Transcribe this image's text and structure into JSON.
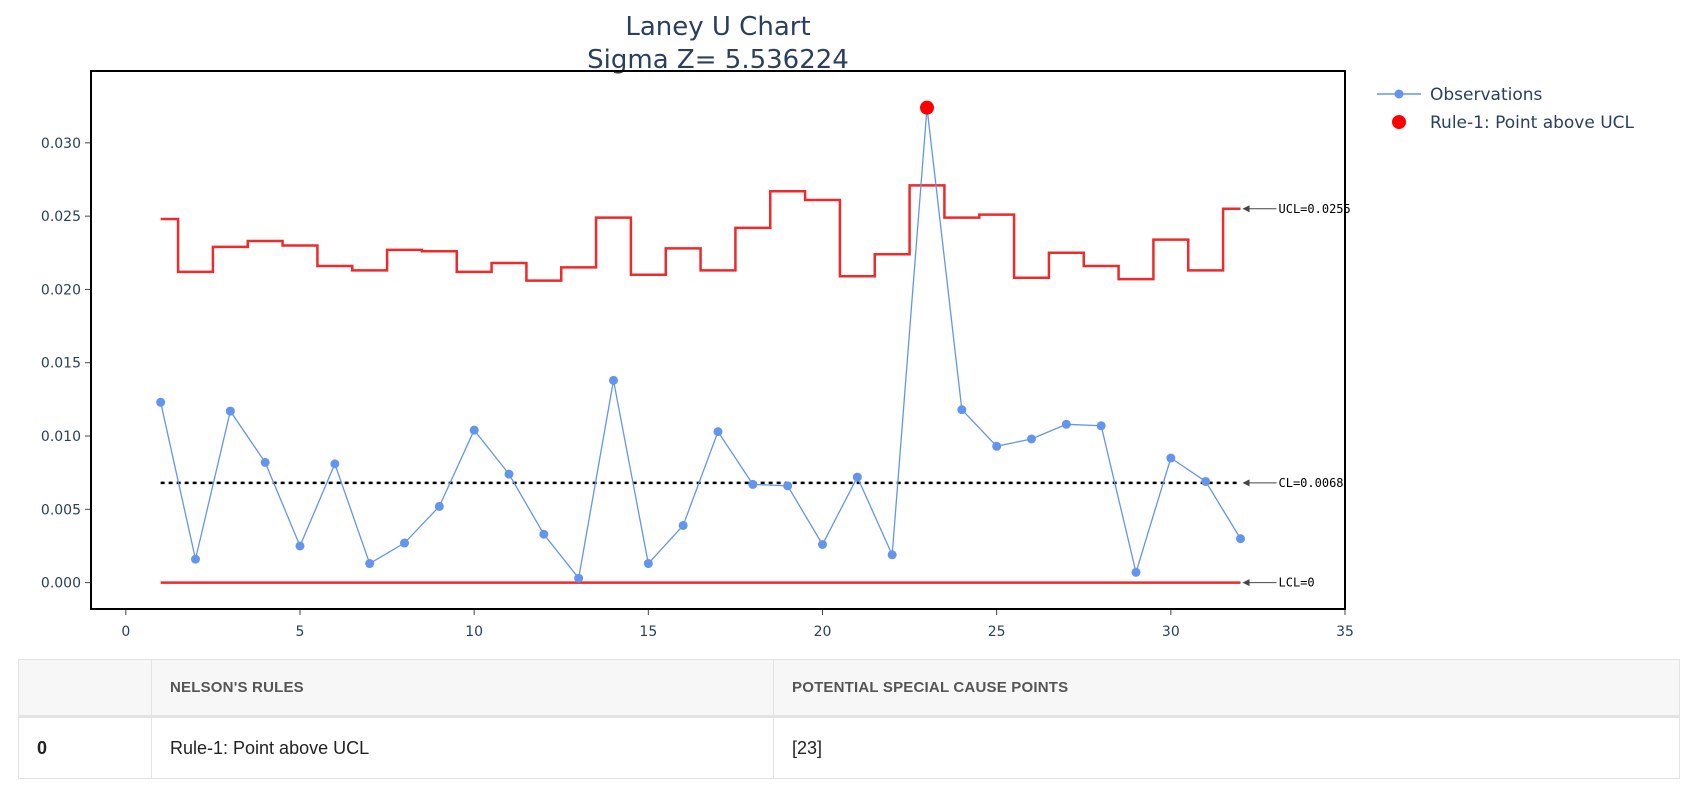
{
  "chart_data": {
    "type": "line",
    "title": "Laney U Chart",
    "subtitle": "Sigma Z= 5.536224",
    "xlim": [
      -1,
      35
    ],
    "ylim": [
      -0.0018,
      0.0349
    ],
    "x_ticks": [
      0,
      5,
      10,
      15,
      20,
      25,
      30,
      35
    ],
    "y_ticks": [
      0.0,
      0.005,
      0.01,
      0.015,
      0.02,
      0.025,
      0.03
    ],
    "y_tick_labels": [
      "0.000",
      "0.005",
      "0.010",
      "0.015",
      "0.020",
      "0.025",
      "0.030"
    ],
    "series": [
      {
        "name": "Observations",
        "color": "#6495ed",
        "mode": "lines+markers",
        "x": [
          1,
          2,
          3,
          4,
          5,
          6,
          7,
          8,
          9,
          10,
          11,
          12,
          13,
          14,
          15,
          16,
          17,
          18,
          19,
          20,
          21,
          22,
          23,
          24,
          25,
          26,
          27,
          28,
          29,
          30,
          31,
          32
        ],
        "values": [
          0.0123,
          0.0016,
          0.0117,
          0.0082,
          0.0025,
          0.0081,
          0.0013,
          0.0027,
          0.0052,
          0.0104,
          0.0074,
          0.0033,
          0.0003,
          0.0138,
          0.0013,
          0.0039,
          0.0103,
          0.0067,
          0.0066,
          0.0026,
          0.0072,
          0.0019,
          0.0324,
          0.0118,
          0.0093,
          0.0098,
          0.0108,
          0.0107,
          0.0007,
          0.0085,
          0.0069,
          0.003
        ]
      },
      {
        "name": "Rule-1: Point above UCL",
        "color": "#ff0000",
        "mode": "markers",
        "x": [
          23
        ],
        "values": [
          0.0324
        ]
      }
    ],
    "ucl": {
      "color": "#ee2a2a",
      "values": [
        0.0248,
        0.0212,
        0.0229,
        0.0233,
        0.023,
        0.0216,
        0.0213,
        0.0227,
        0.0226,
        0.0212,
        0.0218,
        0.0206,
        0.0215,
        0.0249,
        0.021,
        0.0228,
        0.0213,
        0.0242,
        0.0267,
        0.0261,
        0.0209,
        0.0224,
        0.0271,
        0.0249,
        0.0251,
        0.0208,
        0.0225,
        0.0216,
        0.0207,
        0.0234,
        0.0213,
        0.0255
      ]
    },
    "center_line": {
      "value": 0.0068,
      "color": "#000000"
    },
    "lcl": {
      "value": 0,
      "color": "#ee2a2a"
    },
    "annotations": [
      {
        "text": "UCL=0.0255",
        "x": 32,
        "y": 0.0255
      },
      {
        "text": "CL=0.0068",
        "x": 32,
        "y": 0.0068
      },
      {
        "text": "LCL=0",
        "x": 32,
        "y": 0
      }
    ],
    "legend_position": "top-right"
  },
  "table": {
    "headers": [
      "",
      "NELSON'S RULES",
      "POTENTIAL SPECIAL CAUSE POINTS"
    ],
    "rows": [
      {
        "index": "0",
        "rule": "Rule-1: Point above UCL",
        "points": "[23]"
      }
    ]
  }
}
